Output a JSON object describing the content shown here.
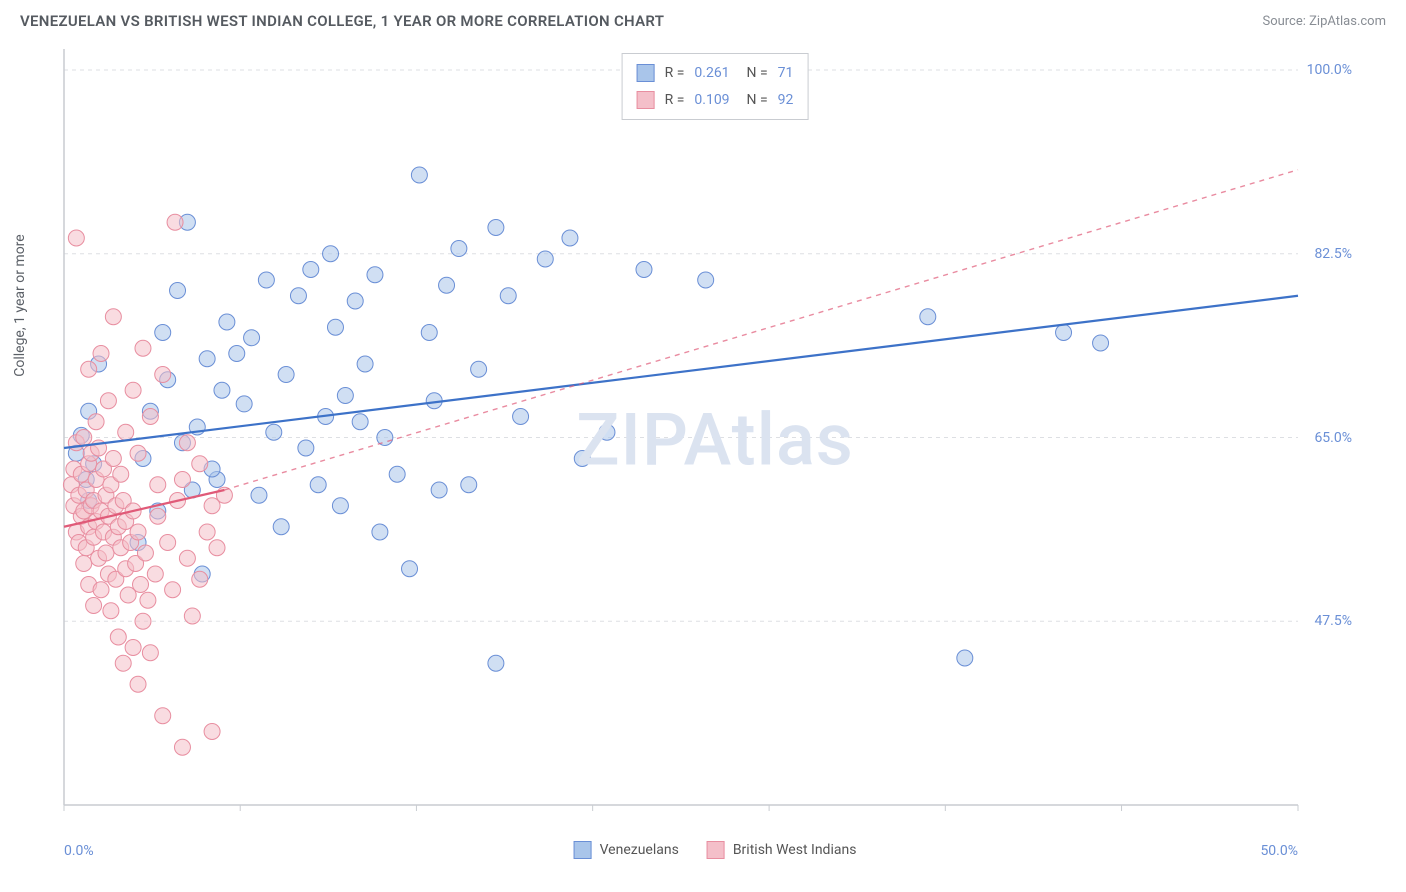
{
  "header": {
    "title": "VENEZUELAN VS BRITISH WEST INDIAN COLLEGE, 1 YEAR OR MORE CORRELATION CHART",
    "source": "Source: ZipAtlas.com"
  },
  "watermark": "ZIPAtlas",
  "chart": {
    "type": "scatter",
    "y_axis_label": "College, 1 year or more",
    "xlim": [
      0,
      50
    ],
    "ylim": [
      30,
      102
    ],
    "x_ticks": [
      0,
      7.14,
      14.28,
      21.42,
      28.57,
      35.71,
      42.85,
      50
    ],
    "x_tick_labels": {
      "0": "0.0%",
      "50": "50.0%"
    },
    "y_gridlines": [
      47.5,
      65.0,
      82.5,
      100.0
    ],
    "y_tick_labels": [
      "47.5%",
      "65.0%",
      "82.5%",
      "100.0%"
    ],
    "grid_color": "#dddfe3",
    "axis_color": "#c9ccd1",
    "background_color": "#ffffff",
    "label_color": "#6a8fd6",
    "label_fontsize": 14,
    "title_fontsize": 15,
    "marker_radius": 8,
    "marker_opacity": 0.55,
    "series": [
      {
        "name": "Venezuelans",
        "legend_label": "Venezuelans",
        "marker_fill": "#a9c5ea",
        "marker_stroke": "#6a8fd6",
        "trend_color": "#3d72c8",
        "trend_width": 2.2,
        "trend_dash": "none",
        "trend_extended_dash": "none",
        "R": "0.261",
        "N": "71",
        "trend_line": {
          "x1": 0,
          "y1": 64.0,
          "x2": 50,
          "y2": 78.5
        },
        "points": [
          [
            0.5,
            63.5
          ],
          [
            0.7,
            65.2
          ],
          [
            0.9,
            61.0
          ],
          [
            1.0,
            67.5
          ],
          [
            1.0,
            59.0
          ],
          [
            1.2,
            62.5
          ],
          [
            1.4,
            72.0
          ],
          [
            3.2,
            63.0
          ],
          [
            3.5,
            67.5
          ],
          [
            3.8,
            58.0
          ],
          [
            4.0,
            75.0
          ],
          [
            4.2,
            70.5
          ],
          [
            4.6,
            79.0
          ],
          [
            4.8,
            64.5
          ],
          [
            5.0,
            85.5
          ],
          [
            5.2,
            60.0
          ],
          [
            5.4,
            66.0
          ],
          [
            5.8,
            72.5
          ],
          [
            6.2,
            61.0
          ],
          [
            6.4,
            69.5
          ],
          [
            6.6,
            76.0
          ],
          [
            7.0,
            73.0
          ],
          [
            7.3,
            68.2
          ],
          [
            7.6,
            74.5
          ],
          [
            7.9,
            59.5
          ],
          [
            8.2,
            80.0
          ],
          [
            8.5,
            65.5
          ],
          [
            9.0,
            71.0
          ],
          [
            9.5,
            78.5
          ],
          [
            10.0,
            81.0
          ],
          [
            10.3,
            60.5
          ],
          [
            10.6,
            67.0
          ],
          [
            11.0,
            75.5
          ],
          [
            11.4,
            69.0
          ],
          [
            11.8,
            78.0
          ],
          [
            12.2,
            72.0
          ],
          [
            12.6,
            80.5
          ],
          [
            13.0,
            65.0
          ],
          [
            13.5,
            61.5
          ],
          [
            14.0,
            52.5
          ],
          [
            14.4,
            90.0
          ],
          [
            15.0,
            68.5
          ],
          [
            15.5,
            79.5
          ],
          [
            16.0,
            83.0
          ],
          [
            16.4,
            60.5
          ],
          [
            16.8,
            71.5
          ],
          [
            17.5,
            43.5
          ],
          [
            17.5,
            85.0
          ],
          [
            18.5,
            67.0
          ],
          [
            19.5,
            82.0
          ],
          [
            20.5,
            84.0
          ],
          [
            21.0,
            63.0
          ],
          [
            22.0,
            65.5
          ],
          [
            23.5,
            81.0
          ],
          [
            26.0,
            80.0
          ],
          [
            35.0,
            76.5
          ],
          [
            36.5,
            44.0
          ],
          [
            40.5,
            75.0
          ],
          [
            42.0,
            74.0
          ],
          [
            3.0,
            55.0
          ],
          [
            5.6,
            52.0
          ],
          [
            8.8,
            56.5
          ],
          [
            11.2,
            58.5
          ],
          [
            12.8,
            56.0
          ],
          [
            6.0,
            62.0
          ],
          [
            9.8,
            64.0
          ],
          [
            14.8,
            75.0
          ],
          [
            18.0,
            78.5
          ],
          [
            15.2,
            60.0
          ],
          [
            12.0,
            66.5
          ],
          [
            10.8,
            82.5
          ]
        ]
      },
      {
        "name": "British West Indians",
        "legend_label": "British West Indians",
        "marker_fill": "#f4bfc9",
        "marker_stroke": "#e88ea0",
        "trend_color": "#e05a78",
        "trend_width": 2.2,
        "trend_dash": "none",
        "trend_extended_dash": "5,5",
        "R": "0.109",
        "N": "92",
        "trend_line": {
          "x1": 0,
          "y1": 56.5,
          "x2": 6.5,
          "y2": 60.0
        },
        "trend_extended": {
          "x1": 6.5,
          "y1": 60.0,
          "x2": 50,
          "y2": 90.5
        },
        "points": [
          [
            0.3,
            60.5
          ],
          [
            0.4,
            62.0
          ],
          [
            0.4,
            58.5
          ],
          [
            0.5,
            56.0
          ],
          [
            0.5,
            64.5
          ],
          [
            0.6,
            59.5
          ],
          [
            0.6,
            55.0
          ],
          [
            0.7,
            57.5
          ],
          [
            0.7,
            61.5
          ],
          [
            0.8,
            53.0
          ],
          [
            0.8,
            58.0
          ],
          [
            0.8,
            65.0
          ],
          [
            0.9,
            54.5
          ],
          [
            0.9,
            60.0
          ],
          [
            1.0,
            56.5
          ],
          [
            1.0,
            62.5
          ],
          [
            1.0,
            51.0
          ],
          [
            1.1,
            58.5
          ],
          [
            1.1,
            63.5
          ],
          [
            1.2,
            55.5
          ],
          [
            1.2,
            59.0
          ],
          [
            1.2,
            49.0
          ],
          [
            1.3,
            57.0
          ],
          [
            1.3,
            61.0
          ],
          [
            1.4,
            53.5
          ],
          [
            1.4,
            64.0
          ],
          [
            1.5,
            58.0
          ],
          [
            1.5,
            50.5
          ],
          [
            1.6,
            56.0
          ],
          [
            1.6,
            62.0
          ],
          [
            1.7,
            54.0
          ],
          [
            1.7,
            59.5
          ],
          [
            1.8,
            52.0
          ],
          [
            1.8,
            57.5
          ],
          [
            1.9,
            60.5
          ],
          [
            1.9,
            48.5
          ],
          [
            2.0,
            55.5
          ],
          [
            2.0,
            63.0
          ],
          [
            2.1,
            51.5
          ],
          [
            2.1,
            58.5
          ],
          [
            2.2,
            46.0
          ],
          [
            2.2,
            56.5
          ],
          [
            2.3,
            54.5
          ],
          [
            2.3,
            61.5
          ],
          [
            2.4,
            43.5
          ],
          [
            2.4,
            59.0
          ],
          [
            2.5,
            52.5
          ],
          [
            2.5,
            57.0
          ],
          [
            2.6,
            50.0
          ],
          [
            2.7,
            55.0
          ],
          [
            2.8,
            45.0
          ],
          [
            2.8,
            58.0
          ],
          [
            2.9,
            53.0
          ],
          [
            3.0,
            41.5
          ],
          [
            3.0,
            56.0
          ],
          [
            3.1,
            51.0
          ],
          [
            3.2,
            47.5
          ],
          [
            3.3,
            54.0
          ],
          [
            3.4,
            49.5
          ],
          [
            3.5,
            44.5
          ],
          [
            3.7,
            52.0
          ],
          [
            3.8,
            57.5
          ],
          [
            4.0,
            38.5
          ],
          [
            4.2,
            55.0
          ],
          [
            4.4,
            50.5
          ],
          [
            4.6,
            59.0
          ],
          [
            4.8,
            35.5
          ],
          [
            5.0,
            53.5
          ],
          [
            5.2,
            48.0
          ],
          [
            5.5,
            51.5
          ],
          [
            5.8,
            56.0
          ],
          [
            6.0,
            37.0
          ],
          [
            6.2,
            54.5
          ],
          [
            6.5,
            59.5
          ],
          [
            1.0,
            71.5
          ],
          [
            1.5,
            73.0
          ],
          [
            2.0,
            76.5
          ],
          [
            1.8,
            68.5
          ],
          [
            2.5,
            65.5
          ],
          [
            3.0,
            63.5
          ],
          [
            3.5,
            67.0
          ],
          [
            0.5,
            84.0
          ],
          [
            4.5,
            85.5
          ],
          [
            3.2,
            73.5
          ],
          [
            4.0,
            71.0
          ],
          [
            2.8,
            69.5
          ],
          [
            1.3,
            66.5
          ],
          [
            5.0,
            64.5
          ],
          [
            5.5,
            62.5
          ],
          [
            4.8,
            61.0
          ],
          [
            6.0,
            58.5
          ],
          [
            3.8,
            60.5
          ]
        ]
      }
    ]
  }
}
